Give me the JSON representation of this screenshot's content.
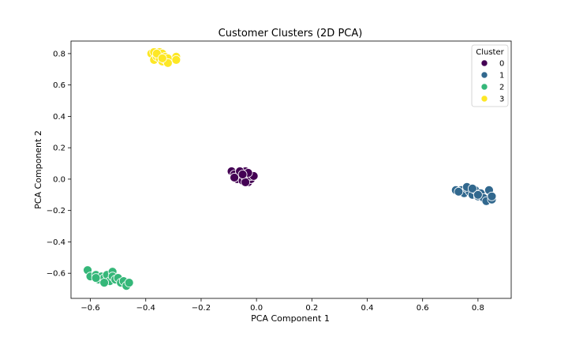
{
  "chart_data": {
    "type": "scatter",
    "title": "Customer Clusters (2D PCA)",
    "xlabel": "PCA Component 1",
    "ylabel": "PCA Component 2",
    "xlim": [
      -0.67,
      0.92
    ],
    "ylim": [
      -0.76,
      0.88
    ],
    "x_ticks": [
      -0.6,
      -0.4,
      -0.2,
      0.0,
      0.2,
      0.4,
      0.6,
      0.8
    ],
    "x_tick_labels": [
      "−0.6",
      "−0.4",
      "−0.2",
      "0.0",
      "0.2",
      "0.4",
      "0.6",
      "0.8"
    ],
    "y_ticks": [
      -0.6,
      -0.4,
      -0.2,
      0.0,
      0.2,
      0.4,
      0.6,
      0.8
    ],
    "y_tick_labels": [
      "−0.6",
      "−0.4",
      "−0.2",
      "0.0",
      "0.2",
      "0.4",
      "0.6",
      "0.8"
    ],
    "grid": false,
    "legend": {
      "title": "Cluster",
      "placement": "top-right"
    },
    "series": [
      {
        "name": "0",
        "color": "#440154",
        "points": [
          [
            -0.09,
            0.05
          ],
          [
            -0.08,
            0.03
          ],
          [
            -0.07,
            0.0
          ],
          [
            -0.06,
            0.04
          ],
          [
            -0.05,
            0.02
          ],
          [
            -0.05,
            -0.01
          ],
          [
            -0.04,
            0.05
          ],
          [
            -0.04,
            0.01
          ],
          [
            -0.03,
            0.03
          ],
          [
            -0.03,
            -0.02
          ],
          [
            -0.02,
            0.0
          ],
          [
            -0.02,
            0.02
          ],
          [
            -0.06,
            0.05
          ],
          [
            -0.08,
            0.01
          ],
          [
            -0.01,
            0.02
          ],
          [
            -0.04,
            -0.02
          ],
          [
            -0.03,
            0.04
          ],
          [
            -0.05,
            0.03
          ]
        ]
      },
      {
        "name": "1",
        "color": "#31688e",
        "points": [
          [
            0.72,
            -0.07
          ],
          [
            0.74,
            -0.07
          ],
          [
            0.75,
            -0.09
          ],
          [
            0.76,
            -0.06
          ],
          [
            0.77,
            -0.08
          ],
          [
            0.78,
            -0.1
          ],
          [
            0.79,
            -0.07
          ],
          [
            0.8,
            -0.11
          ],
          [
            0.81,
            -0.09
          ],
          [
            0.82,
            -0.12
          ],
          [
            0.83,
            -0.14
          ],
          [
            0.84,
            -0.07
          ],
          [
            0.85,
            -0.13
          ],
          [
            0.85,
            -0.11
          ],
          [
            0.76,
            -0.05
          ],
          [
            0.78,
            -0.06
          ],
          [
            0.73,
            -0.08
          ],
          [
            0.8,
            -0.1
          ]
        ]
      },
      {
        "name": "2",
        "color": "#35b779",
        "points": [
          [
            -0.61,
            -0.58
          ],
          [
            -0.6,
            -0.62
          ],
          [
            -0.58,
            -0.61
          ],
          [
            -0.57,
            -0.64
          ],
          [
            -0.56,
            -0.62
          ],
          [
            -0.55,
            -0.63
          ],
          [
            -0.54,
            -0.61
          ],
          [
            -0.53,
            -0.65
          ],
          [
            -0.52,
            -0.59
          ],
          [
            -0.52,
            -0.62
          ],
          [
            -0.51,
            -0.64
          ],
          [
            -0.5,
            -0.63
          ],
          [
            -0.49,
            -0.66
          ],
          [
            -0.48,
            -0.65
          ],
          [
            -0.47,
            -0.68
          ],
          [
            -0.46,
            -0.66
          ],
          [
            -0.55,
            -0.66
          ],
          [
            -0.58,
            -0.63
          ]
        ]
      },
      {
        "name": "3",
        "color": "#fde725",
        "points": [
          [
            -0.38,
            0.8
          ],
          [
            -0.37,
            0.76
          ],
          [
            -0.37,
            0.81
          ],
          [
            -0.36,
            0.78
          ],
          [
            -0.35,
            0.81
          ],
          [
            -0.35,
            0.77
          ],
          [
            -0.34,
            0.75
          ],
          [
            -0.34,
            0.8
          ],
          [
            -0.33,
            0.76
          ],
          [
            -0.33,
            0.78
          ],
          [
            -0.32,
            0.77
          ],
          [
            -0.29,
            0.78
          ],
          [
            -0.29,
            0.76
          ],
          [
            -0.36,
            0.8
          ],
          [
            -0.32,
            0.74
          ],
          [
            -0.34,
            0.77
          ]
        ]
      }
    ]
  }
}
